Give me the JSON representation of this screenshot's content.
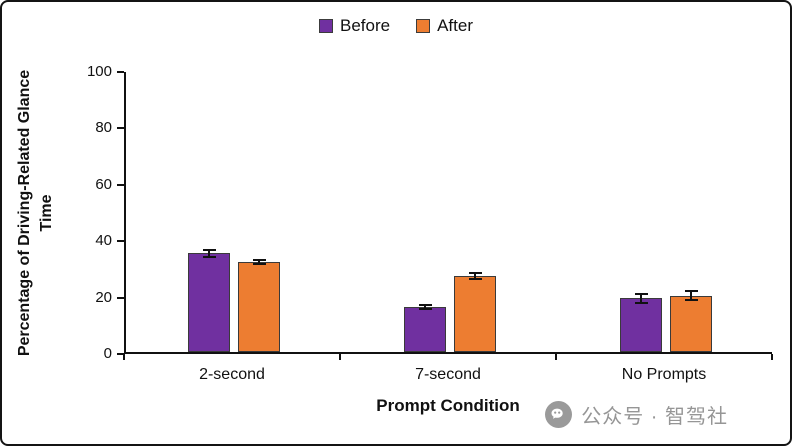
{
  "chart_data": {
    "type": "bar",
    "categories": [
      "2-second",
      "7-second",
      "No Prompts"
    ],
    "series": [
      {
        "name": "Before",
        "color": "#7030A0",
        "values": [
          35,
          16,
          19
        ],
        "errors": [
          1.5,
          1,
          2
        ]
      },
      {
        "name": "After",
        "color": "#ED7D31",
        "values": [
          32,
          27,
          20
        ],
        "errors": [
          1,
          1.5,
          2
        ]
      }
    ],
    "title": "",
    "xlabel": "Prompt Condition",
    "ylabel": "Percentage of Driving-Related Glance Time",
    "ylim": [
      0,
      100
    ],
    "yticks": [
      0,
      20,
      40,
      60,
      80,
      100
    ],
    "grid": false,
    "legend_position": "top-center"
  },
  "colors": {
    "before": "#7030A0",
    "after": "#ED7D31",
    "axis": "#111111",
    "watermark": "#969696"
  },
  "watermark": {
    "text": "公众号 · 智驾社",
    "icon": "wechat-icon"
  }
}
